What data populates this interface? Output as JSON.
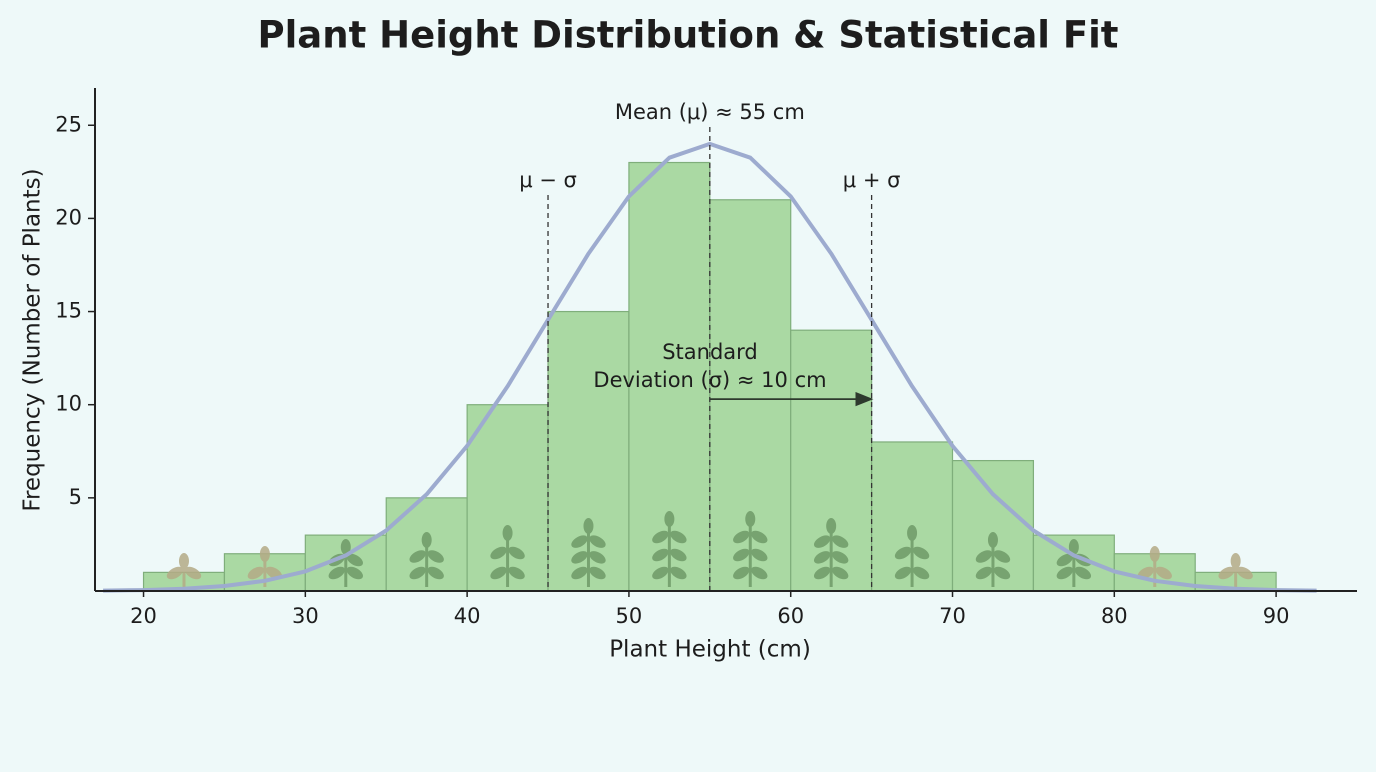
{
  "chart_data": {
    "type": "histogram",
    "title": "Plant Height Distribution & Statistical Fit",
    "x_label": "Plant Height (cm)",
    "y_label": "Frequency (Number of Plants)",
    "bins": [
      20,
      25,
      30,
      35,
      40,
      45,
      50,
      55,
      60,
      65,
      70,
      75,
      80,
      85,
      90
    ],
    "values": [
      1,
      2,
      3,
      5,
      10,
      15,
      23,
      21,
      14,
      8,
      7,
      3,
      2,
      1
    ],
    "color": "#aad9a3",
    "edge_color": "#7fae7b",
    "xlim": [
      17,
      95
    ],
    "ylim": [
      0,
      27
    ],
    "xticks": [
      20,
      30,
      40,
      50,
      60,
      70,
      80,
      90
    ],
    "yticks": [
      5,
      10,
      15,
      20,
      25
    ],
    "curve": {
      "color": "#9dabcf",
      "x": [
        17.5,
        20,
        22.5,
        25,
        27.5,
        30,
        32.5,
        35,
        37.5,
        40,
        42.5,
        45,
        47.5,
        50,
        52.5,
        55,
        57.5,
        60,
        62.5,
        65,
        67.5,
        70,
        72.5,
        75,
        77.5,
        80,
        82.5,
        85,
        87.5,
        90,
        92.5
      ],
      "values": [
        0.02,
        0.05,
        0.12,
        0.27,
        0.55,
        1.05,
        1.91,
        3.25,
        5.19,
        7.79,
        10.99,
        14.56,
        18.11,
        21.18,
        23.26,
        24,
        23.26,
        21.18,
        18.11,
        14.56,
        10.99,
        7.79,
        5.19,
        3.25,
        1.91,
        1.05,
        0.55,
        0.27,
        0.12,
        0.05,
        0.02
      ]
    },
    "reference_lines": [
      {
        "label": "μ − σ",
        "x": 45
      },
      {
        "label": "Mean (μ) ≈ 55 cm",
        "x": 55
      },
      {
        "label": "μ + σ",
        "x": 65
      }
    ],
    "sd_annotation": {
      "lines": [
        "Standard",
        "Deviation (σ) ≈ 10 cm"
      ],
      "x": [
        55,
        65
      ],
      "y": 10.3
    }
  }
}
